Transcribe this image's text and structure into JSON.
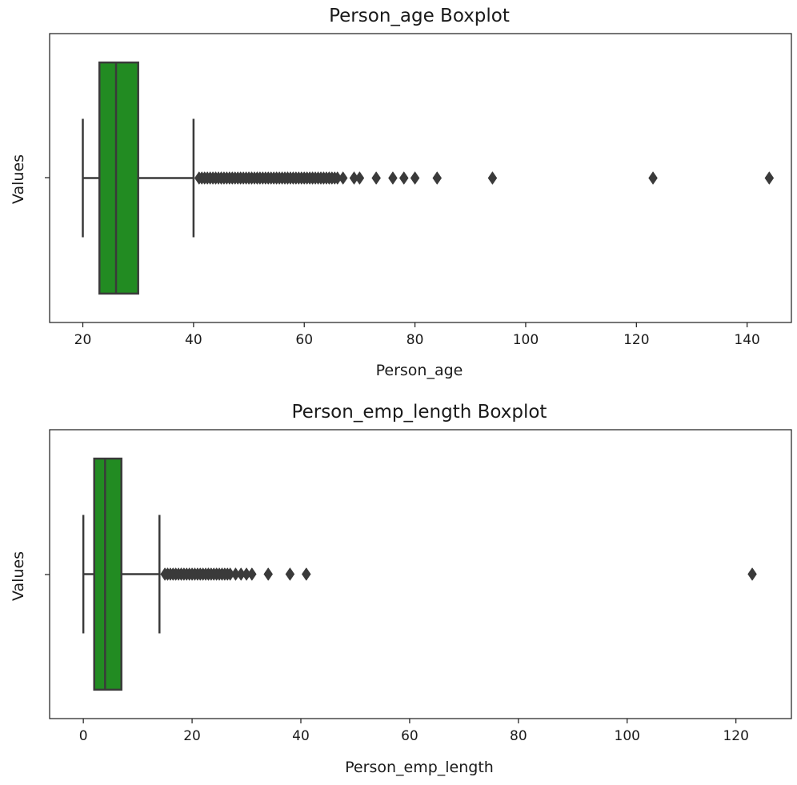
{
  "chart_data": [
    {
      "type": "boxplot",
      "orientation": "horizontal",
      "title": "Person_age Boxplot",
      "xlabel": "Person_age",
      "ylabel": "Values",
      "xlim": [
        14,
        148
      ],
      "xticks": [
        20,
        40,
        60,
        80,
        100,
        120,
        140
      ],
      "grid": false,
      "box_color": "#228b22",
      "line_color": "#3a3a3a",
      "box": {
        "whisker_low": 20,
        "q1": 23,
        "median": 26,
        "q3": 30,
        "whisker_high": 40
      },
      "outliers": [
        41,
        41.5,
        42,
        42.5,
        43,
        43.5,
        44,
        44.5,
        45,
        45.5,
        46,
        46.5,
        47,
        47.5,
        48,
        48.5,
        49,
        49.5,
        50,
        50.5,
        51,
        51.5,
        52,
        52.5,
        53,
        53.5,
        54,
        54.5,
        55,
        55.5,
        56,
        56.5,
        57,
        57.5,
        58,
        58.5,
        59,
        59.5,
        60,
        60.5,
        61,
        61.5,
        62,
        62.5,
        63,
        63.5,
        64,
        64.5,
        65,
        65.5,
        66,
        67,
        69,
        70,
        73,
        76,
        78,
        80,
        84,
        94,
        123,
        144
      ]
    },
    {
      "type": "boxplot",
      "orientation": "horizontal",
      "title": "Person_emp_length Boxplot",
      "xlabel": "Person_emp_length",
      "ylabel": "Values",
      "xlim": [
        -6.2,
        130.2
      ],
      "xticks": [
        0,
        20,
        40,
        60,
        80,
        100,
        120
      ],
      "grid": false,
      "box_color": "#228b22",
      "line_color": "#3a3a3a",
      "box": {
        "whisker_low": 0,
        "q1": 2,
        "median": 4,
        "q3": 7,
        "whisker_high": 14
      },
      "outliers": [
        15,
        15.5,
        16,
        16.5,
        17,
        17.5,
        18,
        18.5,
        19,
        19.5,
        20,
        20.5,
        21,
        21.5,
        22,
        22.5,
        23,
        23.5,
        24,
        24.5,
        25,
        25.5,
        26,
        26.5,
        27,
        28,
        29,
        30,
        31,
        34,
        38,
        41,
        123
      ]
    }
  ]
}
